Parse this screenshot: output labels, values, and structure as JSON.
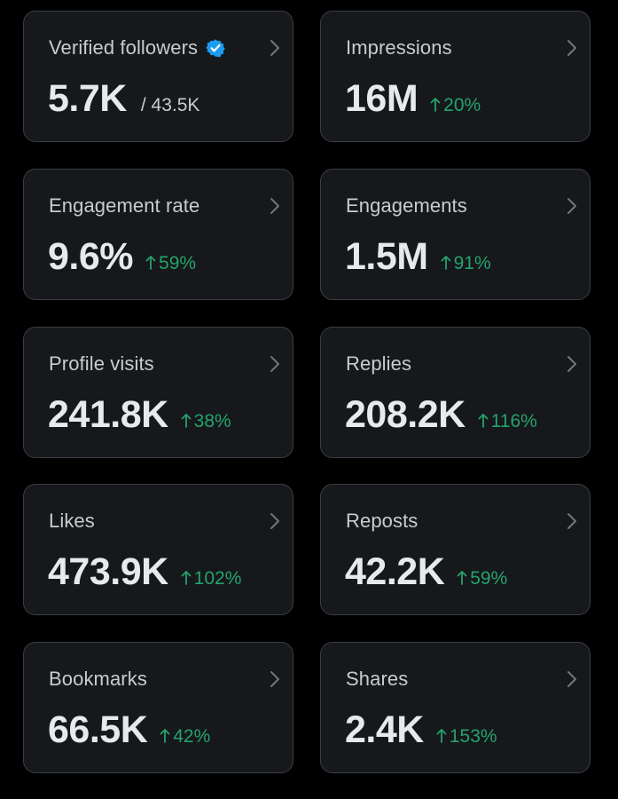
{
  "colors": {
    "background": "#000000",
    "card": "#16181c",
    "card_border": "#3a3e44",
    "positive": "#24a36b",
    "verified_badge": "#1d9bf0"
  },
  "cards": [
    {
      "label": "Verified followers",
      "value": "5.7K",
      "total": "/ 43.5K",
      "icon": "verified-badge-icon"
    },
    {
      "label": "Impressions",
      "value": "16M",
      "change": "20%"
    },
    {
      "label": "Engagement rate",
      "value": "9.6%",
      "change": "59%"
    },
    {
      "label": "Engagements",
      "value": "1.5M",
      "change": "91%"
    },
    {
      "label": "Profile visits",
      "value": "241.8K",
      "change": "38%"
    },
    {
      "label": "Replies",
      "value": "208.2K",
      "change": "116%"
    },
    {
      "label": "Likes",
      "value": "473.9K",
      "change": "102%"
    },
    {
      "label": "Reposts",
      "value": "42.2K",
      "change": "59%"
    },
    {
      "label": "Bookmarks",
      "value": "66.5K",
      "change": "42%"
    },
    {
      "label": "Shares",
      "value": "2.4K",
      "change": "153%"
    }
  ]
}
